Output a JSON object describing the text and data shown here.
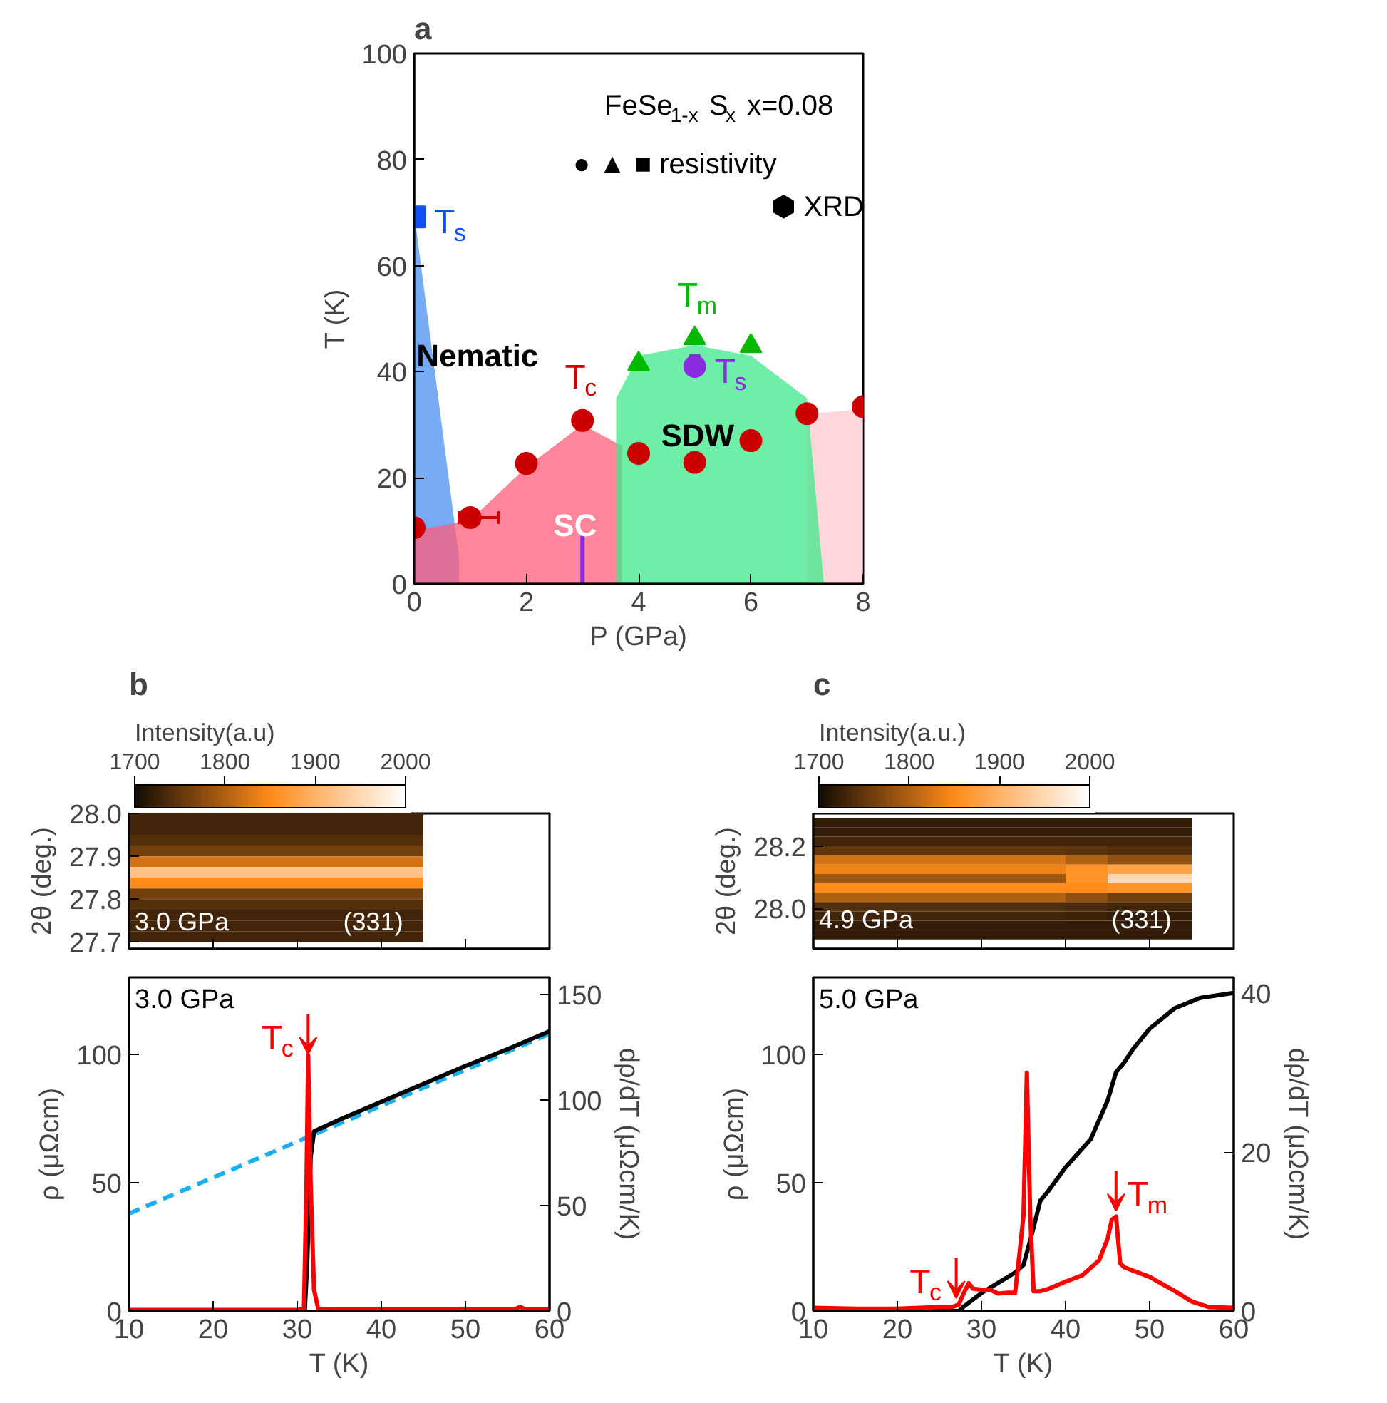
{
  "chart_data": [
    {
      "type": "scatter",
      "title": "a",
      "xlabel": "P (GPa)",
      "ylabel": "T (K)",
      "xlim": [
        0,
        8
      ],
      "ylim": [
        0,
        100
      ],
      "xticks": [
        0,
        2,
        4,
        6,
        8
      ],
      "yticks": [
        0,
        20,
        40,
        60,
        80,
        100
      ],
      "grid": false,
      "series": [
        {
          "type": "area",
          "color": "#4a90f0",
          "x": [
            0,
            0.8
          ],
          "values": [
            70,
            5
          ]
        },
        {
          "type": "area",
          "color": "#ff5c7a",
          "x": [
            0,
            1,
            2,
            3,
            3.7
          ],
          "values": [
            10,
            12,
            22,
            30,
            26
          ]
        },
        {
          "type": "area",
          "color": "#ffc9d2",
          "x": [
            7,
            8
          ],
          "values": [
            32,
            33
          ]
        },
        {
          "type": "area",
          "color": "#3de88a",
          "x": [
            3.6,
            4,
            5,
            6,
            7,
            7.3
          ],
          "values": [
            35,
            43,
            45,
            43,
            35,
            0
          ]
        },
        {
          "type": "scatter",
          "name": "T$_{c}$",
          "color": "#cc0000",
          "marker": "circle",
          "x": [
            0,
            1,
            2,
            3,
            4,
            5,
            6,
            7,
            8
          ],
          "values": [
            10.6,
            12.5,
            22.7,
            30.8,
            24.6,
            22.9,
            27,
            32.1,
            33.4
          ],
          "xerrors": [
            null,
            [
              0.8,
              1.5
            ],
            null,
            null,
            null,
            null,
            null,
            null,
            null
          ]
        },
        {
          "type": "scatter",
          "name": "T$_{m}$",
          "color": "#00ba00",
          "marker": "triangle",
          "x": [
            4,
            5,
            6
          ],
          "values": [
            41.5,
            46.3,
            44.8
          ]
        },
        {
          "type": "scatter",
          "name": "T$_{s}$",
          "color": "#8a2be2",
          "marker": "circle",
          "x": [
            5
          ],
          "values": [
            41
          ],
          "errors": [
            2
          ]
        },
        {
          "type": "scatter",
          "name": "T$_{s}$",
          "color": "#1050f0",
          "marker": "square",
          "x": [
            0
          ],
          "values": [
            69.2
          ]
        },
        {
          "type": "line",
          "color": "#8a2be2",
          "x": [
            3,
            3
          ],
          "values": [
            0,
            9
          ]
        }
      ],
      "annotations": [
        "FeSe$_{1-x}$S$_{x}$ x=0.08",
        "● ▲ ■ resistivity",
        "⬢ XRD",
        "Nematic",
        "SC",
        "SDW"
      ]
    },
    {
      "type": "heatmap",
      "title": "b",
      "ylabel": "2θ (deg.)",
      "clabel": "Intensity(a.u)",
      "clim": [
        1700,
        2000
      ],
      "cticks": [
        1700,
        1800,
        1900,
        2000
      ],
      "xlim": [
        10,
        60
      ],
      "ylim": [
        27.684,
        28.0
      ],
      "xticks": [
        {
          "value": 20,
          "label": null
        },
        {
          "value": 30,
          "label": null
        },
        {
          "value": 40,
          "label": null
        },
        {
          "value": 50,
          "label": null
        }
      ],
      "yticks": [
        27.7,
        27.8,
        27.9,
        {
          "value": 28,
          "label": "28.0"
        }
      ],
      "tick_labels": "y",
      "x": [
        12.5,
        17.5,
        22.5,
        27.5,
        32.5,
        37.5,
        42.5
      ],
      "y": [
        27.9875,
        27.9625,
        27.9375,
        27.9125,
        27.8875,
        27.8625,
        27.8375,
        27.8125,
        27.7875,
        27.7625,
        27.7375,
        27.7125
      ],
      "cells": [
        [
          1730,
          1730,
          1730,
          1730,
          1730,
          1730,
          1730
        ],
        [
          1730,
          1730,
          1730,
          1730,
          1730,
          1730,
          1730
        ],
        [
          1740,
          1740,
          1740,
          1740,
          1740,
          1740,
          1740
        ],
        [
          1760,
          1760,
          1760,
          1760,
          1760,
          1760,
          1760
        ],
        [
          1820,
          1820,
          1820,
          1820,
          1820,
          1820,
          1820
        ],
        [
          1920,
          1920,
          1920,
          1920,
          1920,
          1920,
          1920
        ],
        [
          1850,
          1850,
          1850,
          1850,
          1850,
          1850,
          1850
        ],
        [
          1760,
          1760,
          1760,
          1760,
          1760,
          1760,
          1760
        ],
        [
          1740,
          1740,
          1740,
          1740,
          1740,
          1740,
          1740
        ],
        [
          1730,
          1730,
          1730,
          1730,
          1730,
          1730,
          1730
        ],
        [
          1730,
          1730,
          1730,
          1730,
          1730,
          1730,
          1730
        ],
        [
          1730,
          1730,
          1730,
          1730,
          1730,
          1730,
          1730
        ]
      ],
      "annotations": [
        "3.0 GPa",
        "(331)"
      ]
    },
    {
      "type": "line",
      "xlabel": "T (K)",
      "ylabel": "ρ (μΩcm)",
      "y2label": "dρ/dT (μΩcm/K)",
      "xlim": [
        10,
        60
      ],
      "ylim": [
        0,
        130
      ],
      "y2lim": [
        0,
        158
      ],
      "xticks": [
        10,
        20,
        30,
        40,
        50,
        60
      ],
      "yticks": [
        0,
        50,
        100
      ],
      "y2ticks": [
        0,
        50,
        100,
        150
      ],
      "grid": false,
      "series": [
        {
          "color": "#1ab0f0",
          "line_style": "dashed",
          "x": [
            10,
            60
          ],
          "values": [
            38,
            108
          ]
        },
        {
          "color": "#000000",
          "x": [
            10,
            30.9,
            31.2,
            31.6,
            32,
            35,
            40,
            45,
            50,
            55,
            60
          ],
          "values": [
            0,
            0,
            20,
            60,
            70,
            74.5,
            81.5,
            88.5,
            95.5,
            102,
            109
          ]
        },
        {
          "color": "#ff0000",
          "axis": "y2",
          "x": [
            10,
            20,
            30,
            30.8,
            31.1,
            31.3,
            31.6,
            32,
            32.5,
            40,
            50,
            56,
            56.5,
            57,
            60
          ],
          "values": [
            0.5,
            0.5,
            0.5,
            1,
            60,
            121,
            60,
            10,
            1,
            1,
            1,
            1,
            2,
            1,
            1
          ]
        }
      ],
      "annotations": [
        "3.0 GPa",
        {
          "text": "T$_{c}$",
          "x": 31.3,
          "y": 100
        }
      ]
    },
    {
      "type": "heatmap",
      "title": "c",
      "ylabel": "2θ (deg.)",
      "clabel": "Intensity(a.u.)",
      "clim": [
        1700,
        2000
      ],
      "cticks": [
        1700,
        1800,
        1900,
        2000
      ],
      "xlim": [
        10,
        60
      ],
      "ylim": [
        27.87,
        28.304
      ],
      "xticks": [
        {
          "value": 20,
          "label": null
        },
        {
          "value": 30,
          "label": null
        },
        {
          "value": 40,
          "label": null
        },
        {
          "value": 50,
          "label": null
        }
      ],
      "yticks": [
        {
          "value": 28,
          "label": "28.0"
        },
        28.2
      ],
      "tick_labels": "y",
      "x": [
        12.5,
        17.5,
        22.5,
        27.5,
        32.5,
        37.5,
        42.5,
        47.5,
        52.5
      ],
      "y": [
        28.275,
        28.245,
        28.215,
        28.185,
        28.155,
        28.125,
        28.095,
        28.065,
        28.035,
        28.005,
        27.975,
        27.945,
        27.915
      ],
      "cells": [
        [
          1720,
          1720,
          1720,
          1720,
          1720,
          1720,
          1720,
          1720,
          1720
        ],
        [
          1720,
          1720,
          1720,
          1720,
          1720,
          1720,
          1720,
          1720,
          1720
        ],
        [
          1730,
          1730,
          1730,
          1730,
          1730,
          1730,
          1730,
          1730,
          1730
        ],
        [
          1750,
          1750,
          1750,
          1750,
          1750,
          1750,
          1745,
          1740,
          1740
        ],
        [
          1820,
          1820,
          1820,
          1820,
          1820,
          1820,
          1800,
          1780,
          1780
        ],
        [
          1840,
          1840,
          1840,
          1840,
          1840,
          1840,
          1860,
          1880,
          1880
        ],
        [
          1790,
          1790,
          1790,
          1790,
          1790,
          1790,
          1860,
          1950,
          1950
        ],
        [
          1850,
          1850,
          1850,
          1850,
          1850,
          1850,
          1850,
          1860,
          1860
        ],
        [
          1800,
          1800,
          1800,
          1800,
          1800,
          1800,
          1780,
          1760,
          1760
        ],
        [
          1740,
          1740,
          1740,
          1740,
          1740,
          1740,
          1735,
          1730,
          1730
        ],
        [
          1730,
          1730,
          1730,
          1730,
          1730,
          1730,
          1725,
          1720,
          1720
        ],
        [
          1720,
          1720,
          1720,
          1720,
          1720,
          1720,
          1720,
          1720,
          1720
        ],
        [
          1720,
          1720,
          1720,
          1720,
          1720,
          1720,
          1720,
          1720,
          1720
        ]
      ],
      "annotations": [
        "4.9 GPa",
        "(331)"
      ]
    },
    {
      "type": "line",
      "xlabel": "T (K)",
      "ylabel": "ρ (μΩcm)",
      "y2label": "dρ/dT (μΩcm/K)",
      "xlim": [
        10,
        60
      ],
      "ylim": [
        0,
        130
      ],
      "y2lim": [
        0,
        42
      ],
      "xticks": [
        10,
        20,
        30,
        40,
        50,
        60
      ],
      "yticks": [
        0,
        50,
        100
      ],
      "y2ticks": [
        0,
        20,
        40
      ],
      "grid": false,
      "series": [
        {
          "color": "#000000",
          "x": [
            10,
            27.3,
            28,
            30,
            32,
            34,
            35,
            36,
            37,
            38,
            40,
            43,
            45,
            46,
            47,
            48,
            50,
            53,
            56,
            60
          ],
          "values": [
            0,
            0,
            2,
            7,
            11,
            15,
            18,
            30,
            43,
            47,
            56,
            67,
            82,
            93,
            97,
            102,
            110,
            118,
            122,
            124
          ]
        },
        {
          "color": "#ff0000",
          "axis": "y2",
          "x": [
            10,
            15,
            20,
            25,
            26.5,
            27.3,
            28,
            28.5,
            29,
            30,
            31,
            32,
            33,
            34,
            34.5,
            35,
            35.4,
            35.8,
            36.2,
            37,
            38,
            40,
            42,
            44,
            45,
            45.5,
            46,
            46.5,
            47,
            50,
            53,
            55,
            57,
            60
          ],
          "values": [
            0.4,
            0.3,
            0.3,
            0.5,
            0.5,
            0.8,
            2.5,
            3.5,
            2.8,
            2.7,
            2.7,
            2.2,
            2.3,
            2.3,
            7,
            12,
            30,
            12,
            2.5,
            2.5,
            2.8,
            3.7,
            4.5,
            6.4,
            9.1,
            11.5,
            11.9,
            6,
            5.5,
            4.3,
            2.5,
            1.2,
            0.5,
            0.4
          ]
        }
      ],
      "annotations": [
        "5.0 GPa",
        {
          "text": "T$_{c}$",
          "x": 27,
          "y": 5
        },
        {
          "text": "T$_{m}$",
          "x": 46,
          "y": 39
        }
      ]
    }
  ]
}
